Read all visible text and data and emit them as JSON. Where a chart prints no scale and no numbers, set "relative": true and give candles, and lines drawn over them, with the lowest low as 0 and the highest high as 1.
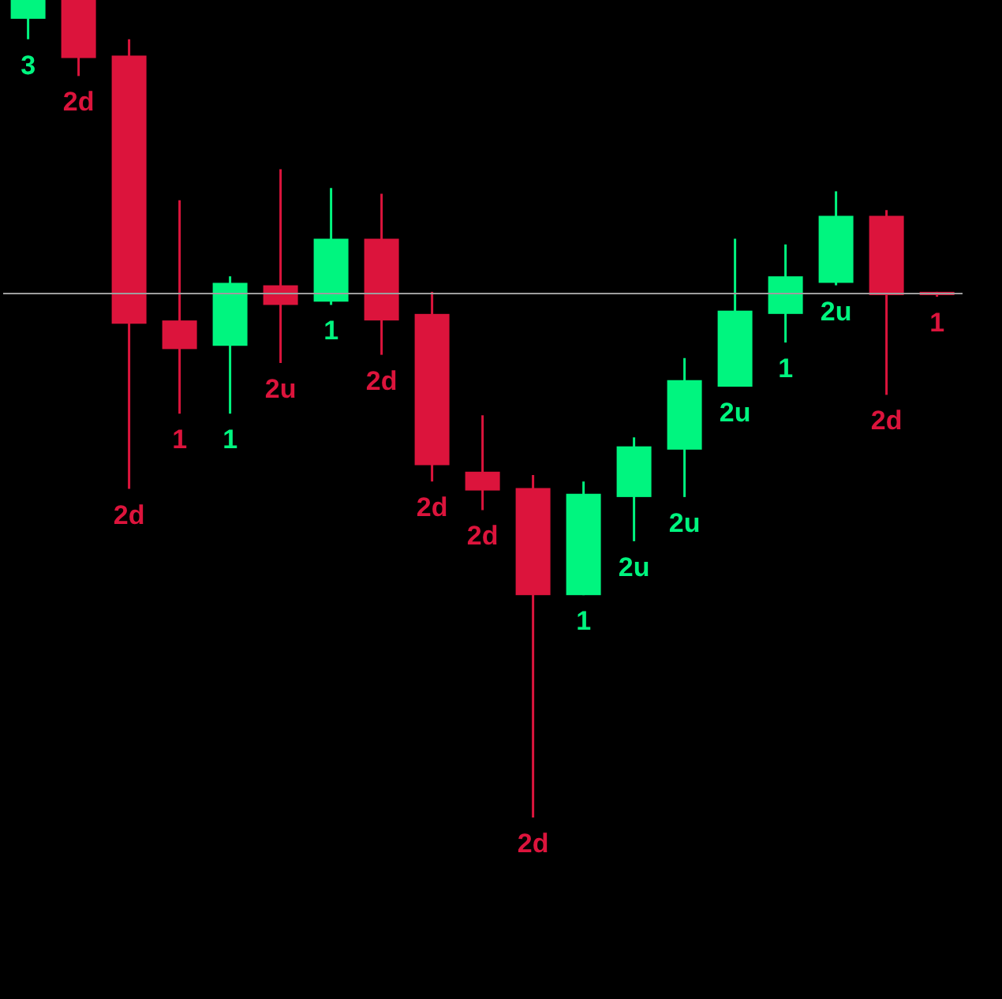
{
  "chart_data": {
    "type": "candlestick",
    "relative": true,
    "categories": [
      null,
      null,
      null,
      null,
      null,
      null,
      null,
      null,
      null,
      null,
      null,
      null,
      null,
      null,
      null,
      null,
      null,
      null,
      null
    ],
    "ohlc": [
      [
        0.977,
        1,
        0.952,
        1
      ],
      [
        1,
        1,
        0.907,
        0.929
      ],
      [
        0.932,
        0.952,
        0.402,
        0.604
      ],
      [
        0.608,
        0.755,
        0.494,
        0.573
      ],
      [
        0.577,
        0.662,
        0.494,
        0.654
      ],
      [
        0.651,
        0.793,
        0.556,
        0.627
      ],
      [
        0.631,
        0.77,
        0.627,
        0.708
      ],
      [
        0.708,
        0.763,
        0.566,
        0.608
      ],
      [
        0.616,
        0.643,
        0.411,
        0.431
      ],
      [
        0.423,
        0.492,
        0.376,
        0.4
      ],
      [
        0.403,
        0.419,
        0,
        0.272
      ],
      [
        0.272,
        0.411,
        0.272,
        0.396
      ],
      [
        0.392,
        0.465,
        0.338,
        0.454
      ],
      [
        0.45,
        0.562,
        0.392,
        0.535
      ],
      [
        0.527,
        0.708,
        0.527,
        0.62
      ],
      [
        0.616,
        0.701,
        0.581,
        0.662
      ],
      [
        0.654,
        0.766,
        0.651,
        0.736
      ],
      [
        0.736,
        0.743,
        0.517,
        0.639
      ],
      [
        0.643,
        0.643,
        0.637,
        0.639
      ]
    ],
    "colors": [
      "#00f57f",
      "#dc143c",
      "#dc143c",
      "#dc143c",
      "#00f57f",
      "#dc143c",
      "#00f57f",
      "#dc143c",
      "#dc143c",
      "#dc143c",
      "#dc143c",
      "#00f57f",
      "#00f57f",
      "#00f57f",
      "#00f57f",
      "#00f57f",
      "#00f57f",
      "#dc143c",
      "#dc143c"
    ],
    "annotations": [
      "3",
      "2d",
      "2d",
      "1",
      "1",
      "2u",
      "1",
      "2d",
      "2d",
      "2d",
      "2d",
      "1",
      "2u",
      "2u",
      "2u",
      "1",
      "2u",
      "2d",
      "1"
    ],
    "ref_lines": [
      {
        "axis": "y",
        "value": 0.641,
        "color": "#9e9e9e"
      }
    ]
  }
}
